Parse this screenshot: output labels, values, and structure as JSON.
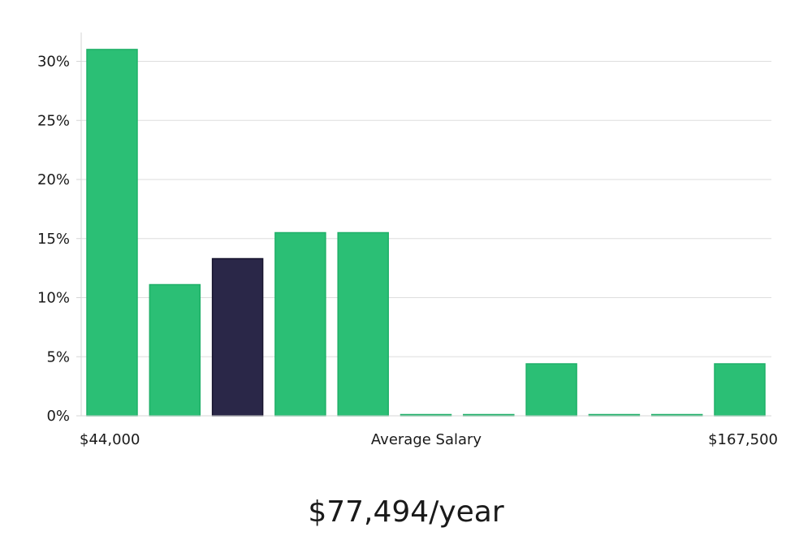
{
  "chart_data": {
    "type": "bar",
    "xlabel": "Average Salary",
    "x_min_label": "$44,000",
    "x_max_label": "$167,500",
    "ylim": [
      0,
      32.5
    ],
    "y_ticks": [
      0,
      5,
      10,
      15,
      20,
      25,
      30
    ],
    "y_tick_labels": [
      "0%",
      "5%",
      "10%",
      "15%",
      "20%",
      "25%",
      "30%"
    ],
    "grid": true,
    "values": [
      31.0,
      11.1,
      13.3,
      15.5,
      15.5,
      0,
      0,
      4.4,
      0,
      0,
      4.4
    ],
    "highlight_index": 2,
    "colors": {
      "bar": "#2bbf75",
      "bar_edge": "#1fb068",
      "highlight": "#2a2748",
      "highlight_edge": "#17142e"
    }
  },
  "salary_readout": "$77,494/year"
}
